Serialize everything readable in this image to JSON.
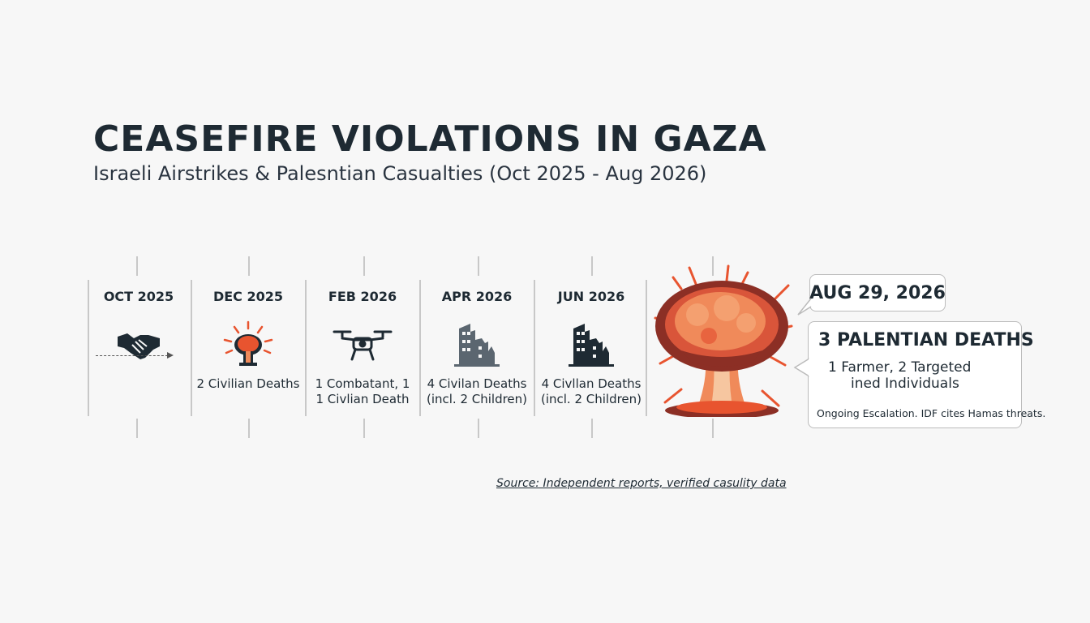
{
  "title": "CEASEFIRE VIOLATIONS IN GAZA",
  "subtitle": "Israeli Airstrikes & Palesntian Casualties (Oct 2025 - Aug 2026)",
  "timeline": [
    {
      "date": "OCT 2025",
      "icon": "handshake-icon",
      "lines": [
        "",
        ""
      ]
    },
    {
      "date": "DEC 2025",
      "icon": "explosion-icon",
      "lines": [
        "2 Civilian Deaths",
        ""
      ]
    },
    {
      "date": "FEB 2026",
      "icon": "drone-icon",
      "lines": [
        "1 Combatant, 1",
        "1 Civlian Death"
      ]
    },
    {
      "date": "APR 2026",
      "icon": "destroyed-building-icon",
      "lines": [
        "4 Civilan Deaths",
        "(incl. 2 Children)"
      ]
    },
    {
      "date": "JUN 2026",
      "icon": "destroyed-building-icon",
      "lines": [
        "4 Civllan Deaths",
        "(incl. 2 Children)"
      ]
    }
  ],
  "final_event": {
    "icon": "mushroom-cloud-icon",
    "date": "AUG 29, 2026",
    "headline": "3 PALENTIAN DEATHS",
    "detail_line1": "1 Farmer, 2 Targeted",
    "detail_line2": "ined Individuals",
    "note": "Ongoing Escalation. IDF cites Hamas threats."
  },
  "source": "Source: Independent reports, verified casulity data",
  "colors": {
    "text": "#1e2a33",
    "explosion_dark": "#8c2f25",
    "explosion_mid": "#d9553a",
    "explosion_light": "#f08a5a",
    "building_light": "#5b6670",
    "building_dark": "#1e2a33"
  }
}
